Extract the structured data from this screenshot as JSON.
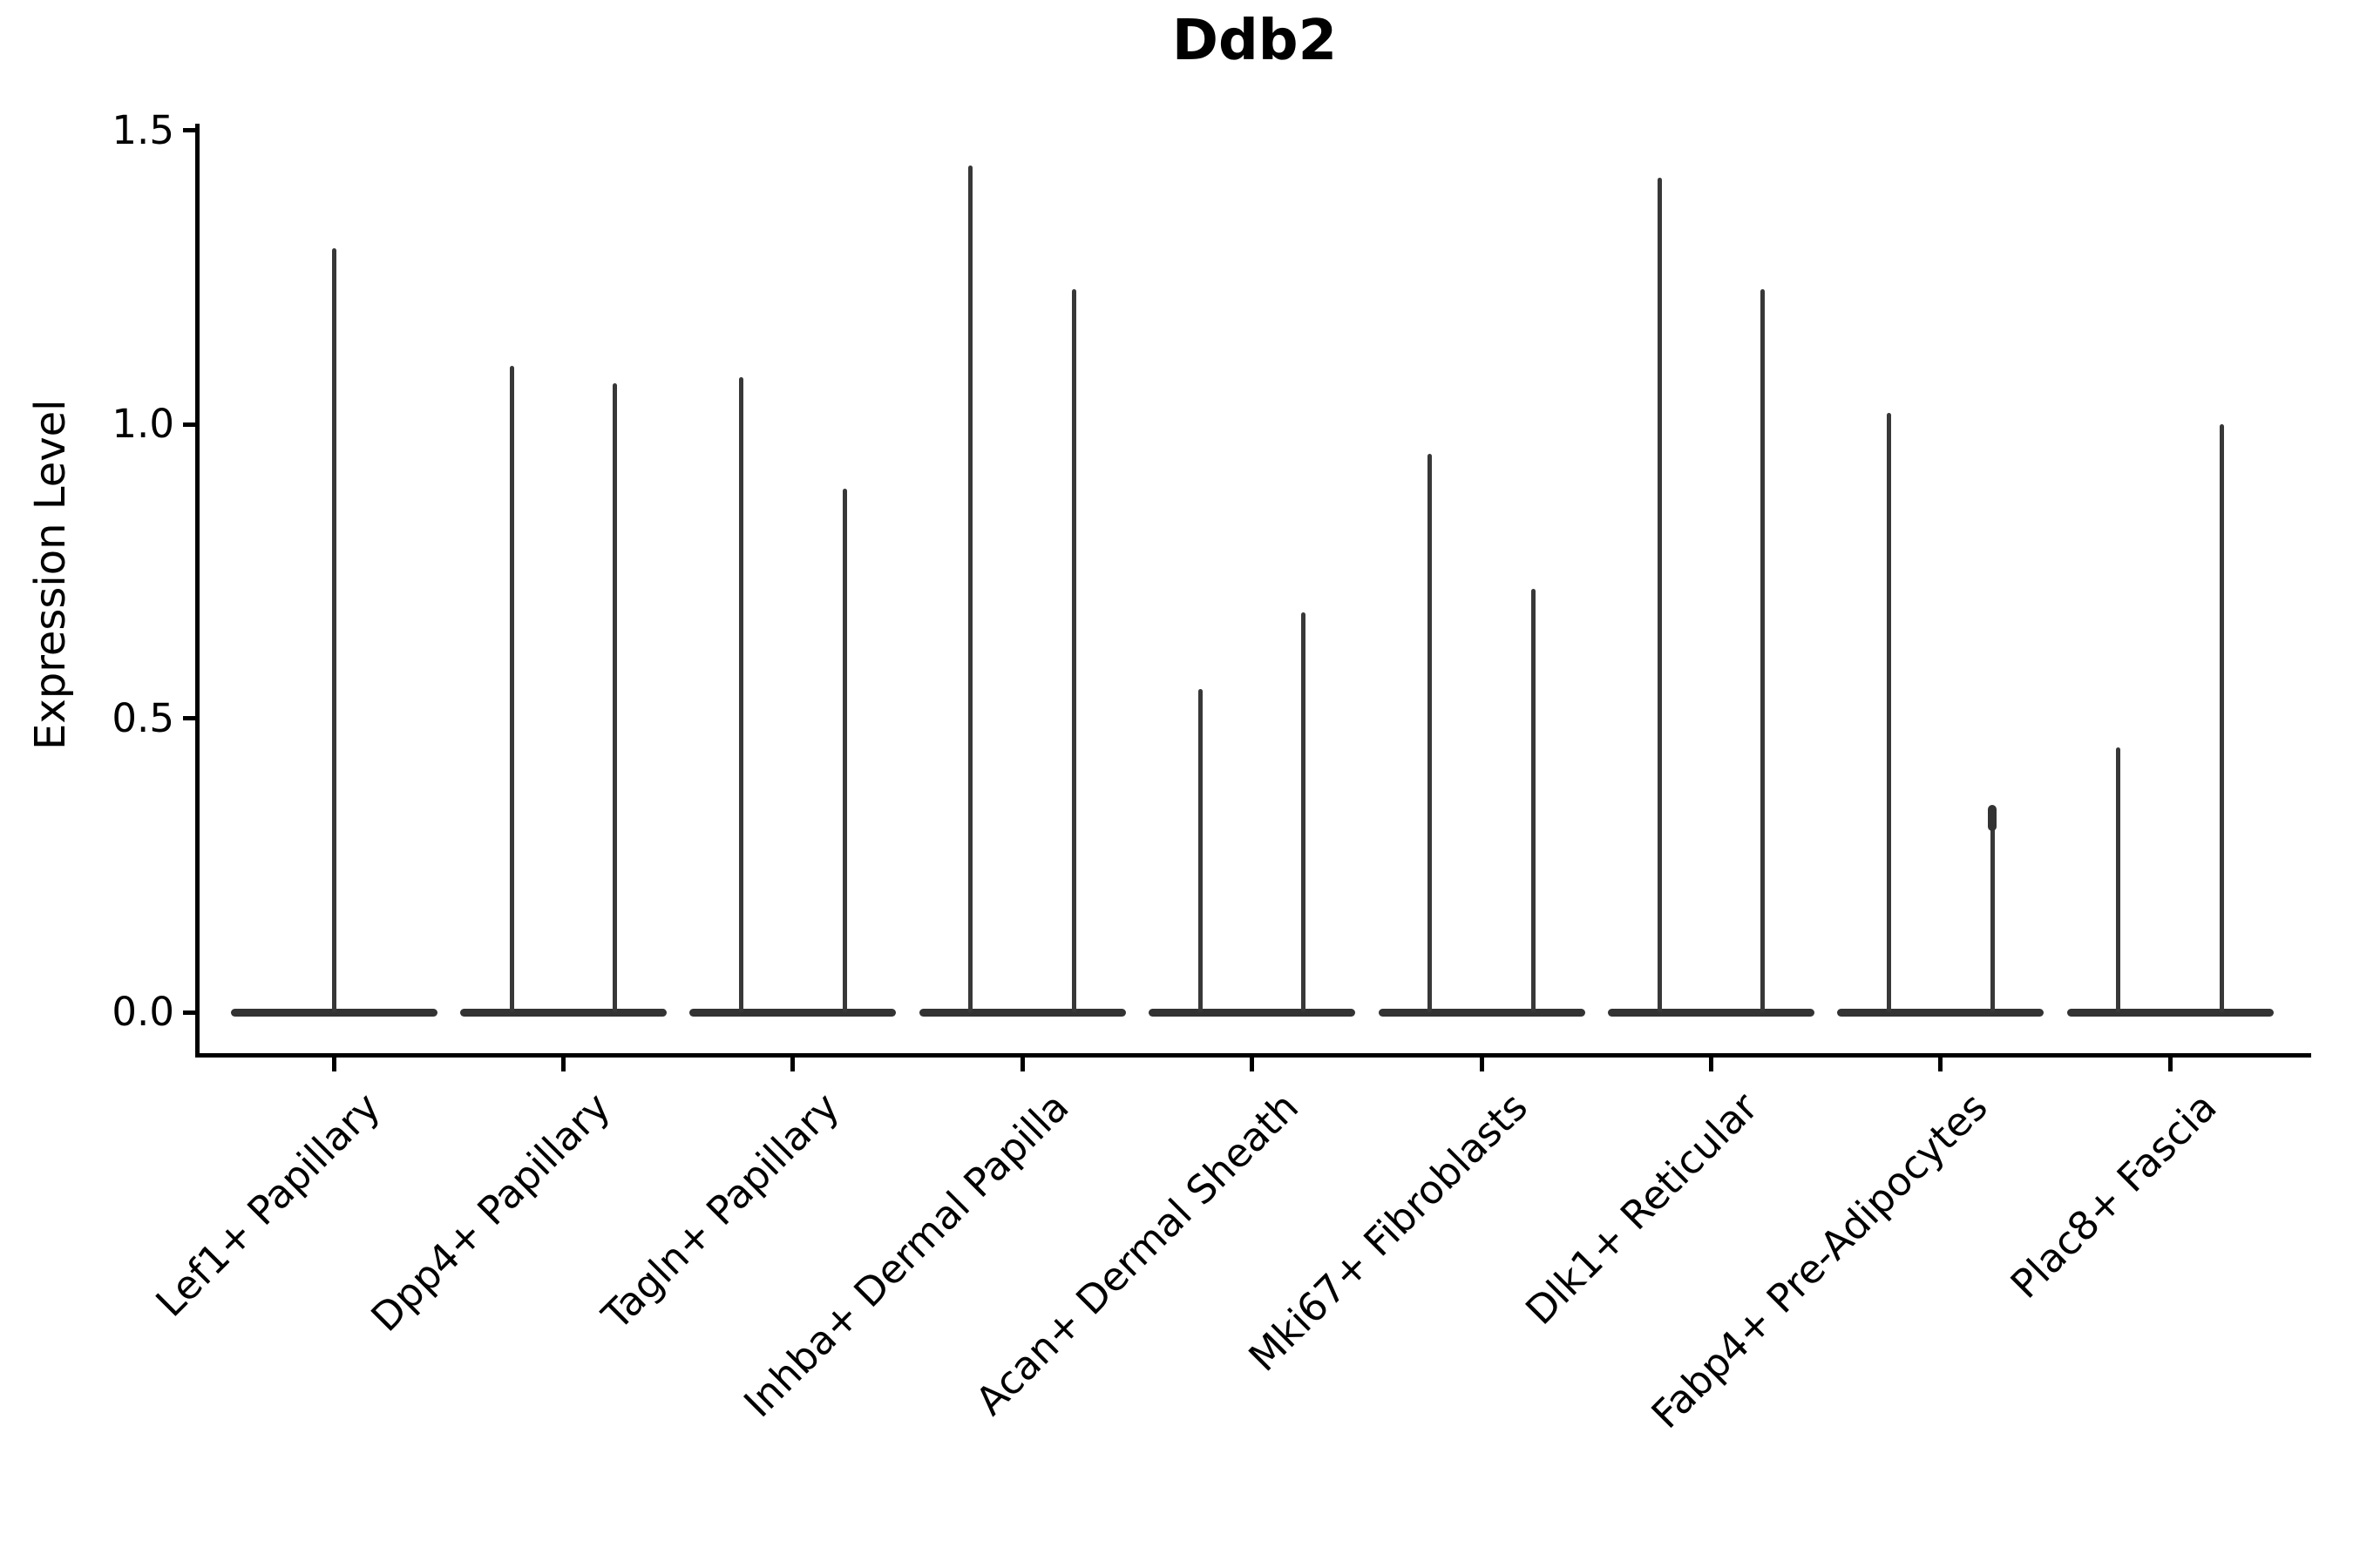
{
  "title": "Ddb2",
  "chart_data": {
    "type": "violin",
    "title": "Ddb2",
    "xlabel": "",
    "ylabel": "Expression Level",
    "ylim": [
      -0.07,
      1.51
    ],
    "yticks": [
      0.0,
      0.5,
      1.0,
      1.5
    ],
    "ytick_labels": [
      "0.0",
      "0.5",
      "1.0",
      "1.5"
    ],
    "grid": false,
    "legend": "none",
    "categories": [
      "Lef1+ Papillary",
      "Dpp4+ Papillary",
      "Tagln+ Papillary",
      "Inhba+ Dermal Papilla",
      "Acan+ Dermal Sheath",
      "Mki67+ Fibroblasts",
      "Dlk1+ Reticular",
      "Fabp4+ Pre-Adipocytes",
      "Plac8+ Fascia"
    ],
    "violins": [
      {
        "category": "Lef1+ Papillary",
        "spikes": [
          {
            "value": 1.3
          }
        ]
      },
      {
        "category": "Dpp4+ Papillary",
        "spikes": [
          {
            "value": 1.1
          },
          {
            "value": 1.07
          }
        ]
      },
      {
        "category": "Tagln+ Papillary",
        "spikes": [
          {
            "value": 1.08
          },
          {
            "value": 0.89
          }
        ]
      },
      {
        "category": "Inhba+ Dermal Papilla",
        "spikes": [
          {
            "value": 1.44
          },
          {
            "value": 1.23
          }
        ]
      },
      {
        "category": "Acan+ Dermal Sheath",
        "spikes": [
          {
            "value": 0.55
          },
          {
            "value": 0.68
          }
        ]
      },
      {
        "category": "Mki67+ Fibroblasts",
        "spikes": [
          {
            "value": 0.95
          },
          {
            "value": 0.72
          }
        ]
      },
      {
        "category": "Dlk1+ Reticular",
        "spikes": [
          {
            "value": 1.42
          },
          {
            "value": 1.23
          }
        ]
      },
      {
        "category": "Fabp4+ Pre-Adipocytes",
        "spikes": [
          {
            "value": 1.02
          },
          {
            "value": 0.35,
            "bulge": true
          }
        ]
      },
      {
        "category": "Plac8+ Fascia",
        "spikes": [
          {
            "value": 0.45
          },
          {
            "value": 1.0
          }
        ]
      }
    ],
    "colors": {
      "violin": "#333333",
      "spike": "#383838",
      "axis": "#000000",
      "text": "#000000",
      "background": "#ffffff"
    }
  }
}
